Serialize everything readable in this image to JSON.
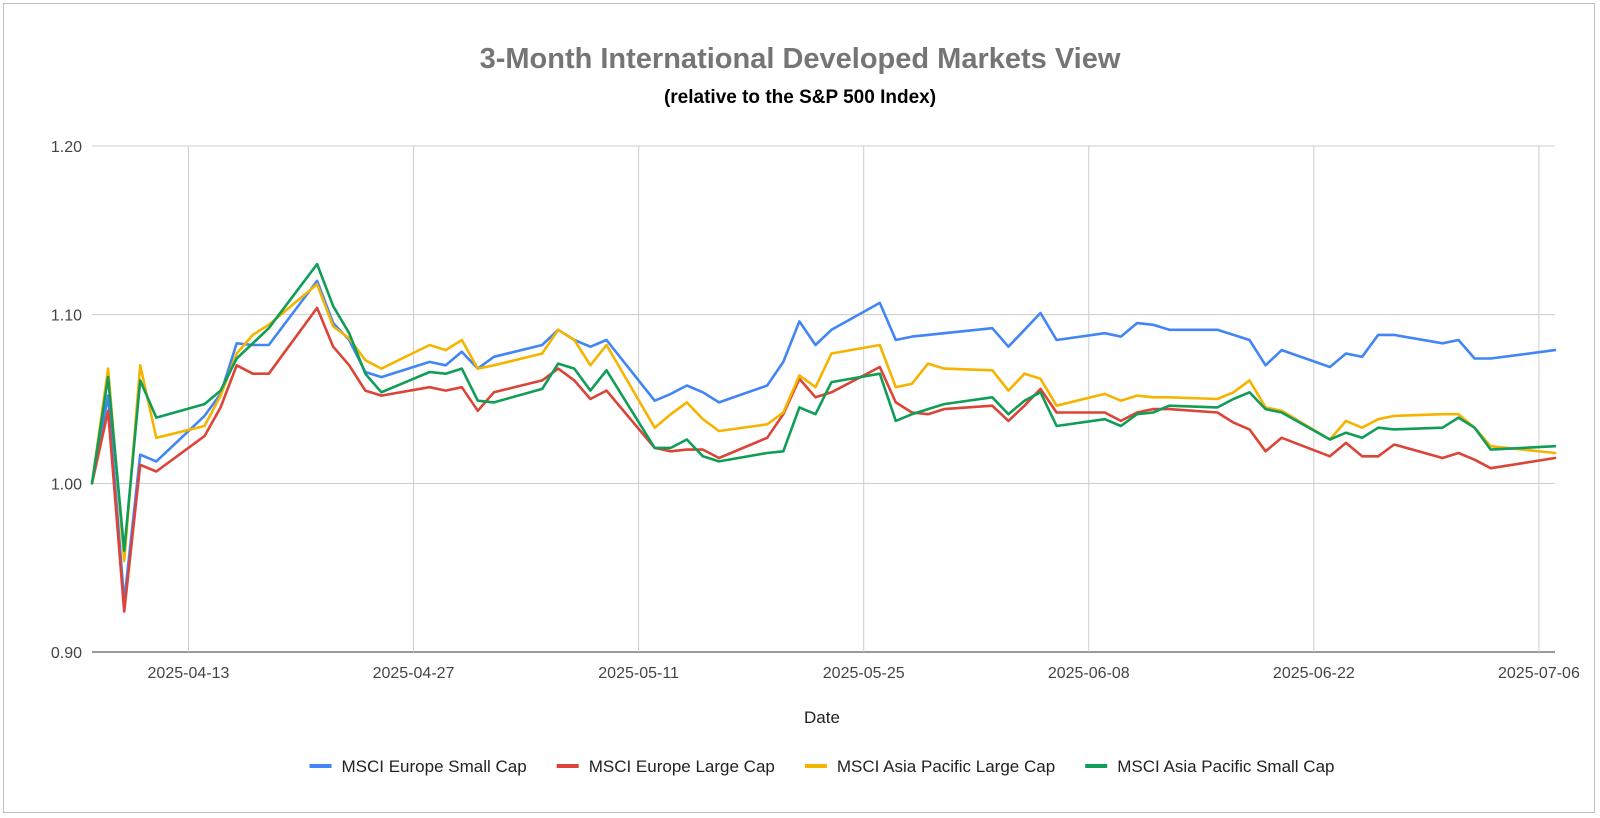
{
  "chart_data": {
    "type": "line",
    "title": "3-Month International Developed Markets View",
    "subtitle": "(relative to the S&P 500 Index)",
    "xlabel": "Date",
    "ylabel": "",
    "ylim": [
      0.9,
      1.2
    ],
    "yticks": [
      "0.90",
      "1.00",
      "1.10",
      "1.20"
    ],
    "xlim": [
      "2025-04-07",
      "2025-07-07"
    ],
    "xticks": [
      "2025-04-13",
      "2025-04-27",
      "2025-05-11",
      "2025-05-25",
      "2025-06-08",
      "2025-06-22",
      "2025-07-06"
    ],
    "legend_position": "bottom",
    "x": [
      "2025-04-07",
      "2025-04-08",
      "2025-04-09",
      "2025-04-10",
      "2025-04-11",
      "2025-04-14",
      "2025-04-15",
      "2025-04-16",
      "2025-04-17",
      "2025-04-18",
      "2025-04-21",
      "2025-04-22",
      "2025-04-23",
      "2025-04-24",
      "2025-04-25",
      "2025-04-28",
      "2025-04-29",
      "2025-04-30",
      "2025-05-01",
      "2025-05-02",
      "2025-05-05",
      "2025-05-06",
      "2025-05-07",
      "2025-05-08",
      "2025-05-09",
      "2025-05-12",
      "2025-05-13",
      "2025-05-14",
      "2025-05-15",
      "2025-05-16",
      "2025-05-19",
      "2025-05-20",
      "2025-05-21",
      "2025-05-22",
      "2025-05-23",
      "2025-05-26",
      "2025-05-27",
      "2025-05-28",
      "2025-05-29",
      "2025-05-30",
      "2025-06-02",
      "2025-06-03",
      "2025-06-04",
      "2025-06-05",
      "2025-06-06",
      "2025-06-09",
      "2025-06-10",
      "2025-06-11",
      "2025-06-12",
      "2025-06-13",
      "2025-06-16",
      "2025-06-17",
      "2025-06-18",
      "2025-06-19",
      "2025-06-20",
      "2025-06-23",
      "2025-06-24",
      "2025-06-25",
      "2025-06-26",
      "2025-06-27",
      "2025-06-30",
      "2025-07-01",
      "2025-07-02",
      "2025-07-03",
      "2025-07-07"
    ],
    "series": [
      {
        "name": "MSCI Europe Small Cap",
        "color": "#4285f4",
        "values": [
          1.0,
          1.052,
          0.93,
          1.017,
          1.013,
          1.04,
          1.053,
          1.083,
          1.082,
          1.082,
          1.12,
          1.095,
          1.085,
          1.066,
          1.063,
          1.072,
          1.07,
          1.078,
          1.068,
          1.075,
          1.082,
          1.091,
          1.085,
          1.081,
          1.085,
          1.049,
          1.053,
          1.058,
          1.054,
          1.048,
          1.058,
          1.072,
          1.096,
          1.082,
          1.091,
          1.107,
          1.085,
          1.087,
          1.088,
          1.089,
          1.092,
          1.081,
          1.091,
          1.101,
          1.085,
          1.089,
          1.087,
          1.095,
          1.094,
          1.091,
          1.091,
          1.088,
          1.085,
          1.07,
          1.079,
          1.069,
          1.077,
          1.075,
          1.088,
          1.088,
          1.083,
          1.085,
          1.074,
          1.074,
          1.079
        ]
      },
      {
        "name": "MSCI Europe Large Cap",
        "color": "#db4437",
        "values": [
          1.0,
          1.043,
          0.924,
          1.011,
          1.007,
          1.028,
          1.045,
          1.07,
          1.065,
          1.065,
          1.104,
          1.081,
          1.07,
          1.055,
          1.052,
          1.057,
          1.055,
          1.057,
          1.043,
          1.054,
          1.061,
          1.068,
          1.061,
          1.05,
          1.055,
          1.021,
          1.019,
          1.02,
          1.02,
          1.015,
          1.027,
          1.041,
          1.062,
          1.051,
          1.054,
          1.069,
          1.048,
          1.042,
          1.041,
          1.044,
          1.046,
          1.037,
          1.046,
          1.056,
          1.042,
          1.042,
          1.037,
          1.042,
          1.044,
          1.044,
          1.042,
          1.036,
          1.032,
          1.019,
          1.027,
          1.016,
          1.024,
          1.016,
          1.016,
          1.023,
          1.015,
          1.018,
          1.014,
          1.009,
          1.015
        ]
      },
      {
        "name": "MSCI Asia Pacific Large Cap",
        "color": "#f4b400",
        "values": [
          1.0,
          1.068,
          0.954,
          1.07,
          1.027,
          1.034,
          1.052,
          1.077,
          1.088,
          1.094,
          1.118,
          1.093,
          1.086,
          1.073,
          1.068,
          1.082,
          1.079,
          1.085,
          1.068,
          1.07,
          1.077,
          1.091,
          1.085,
          1.07,
          1.082,
          1.033,
          1.041,
          1.048,
          1.038,
          1.031,
          1.035,
          1.042,
          1.064,
          1.057,
          1.077,
          1.082,
          1.057,
          1.059,
          1.071,
          1.068,
          1.067,
          1.055,
          1.065,
          1.062,
          1.046,
          1.053,
          1.049,
          1.052,
          1.051,
          1.051,
          1.05,
          1.054,
          1.061,
          1.045,
          1.043,
          1.026,
          1.037,
          1.033,
          1.038,
          1.04,
          1.041,
          1.041,
          1.033,
          1.022,
          1.018
        ]
      },
      {
        "name": "MSCI Asia Pacific Small Cap",
        "color": "#0f9d58",
        "values": [
          1.0,
          1.063,
          0.96,
          1.061,
          1.039,
          1.047,
          1.055,
          1.074,
          1.083,
          1.092,
          1.13,
          1.105,
          1.089,
          1.065,
          1.054,
          1.066,
          1.065,
          1.068,
          1.049,
          1.048,
          1.056,
          1.071,
          1.068,
          1.055,
          1.067,
          1.021,
          1.021,
          1.026,
          1.016,
          1.013,
          1.018,
          1.019,
          1.045,
          1.041,
          1.06,
          1.065,
          1.037,
          1.041,
          1.044,
          1.047,
          1.051,
          1.041,
          1.049,
          1.054,
          1.034,
          1.038,
          1.034,
          1.041,
          1.042,
          1.046,
          1.045,
          1.05,
          1.054,
          1.044,
          1.042,
          1.026,
          1.03,
          1.027,
          1.033,
          1.032,
          1.033,
          1.039,
          1.033,
          1.02,
          1.022
        ]
      }
    ]
  }
}
